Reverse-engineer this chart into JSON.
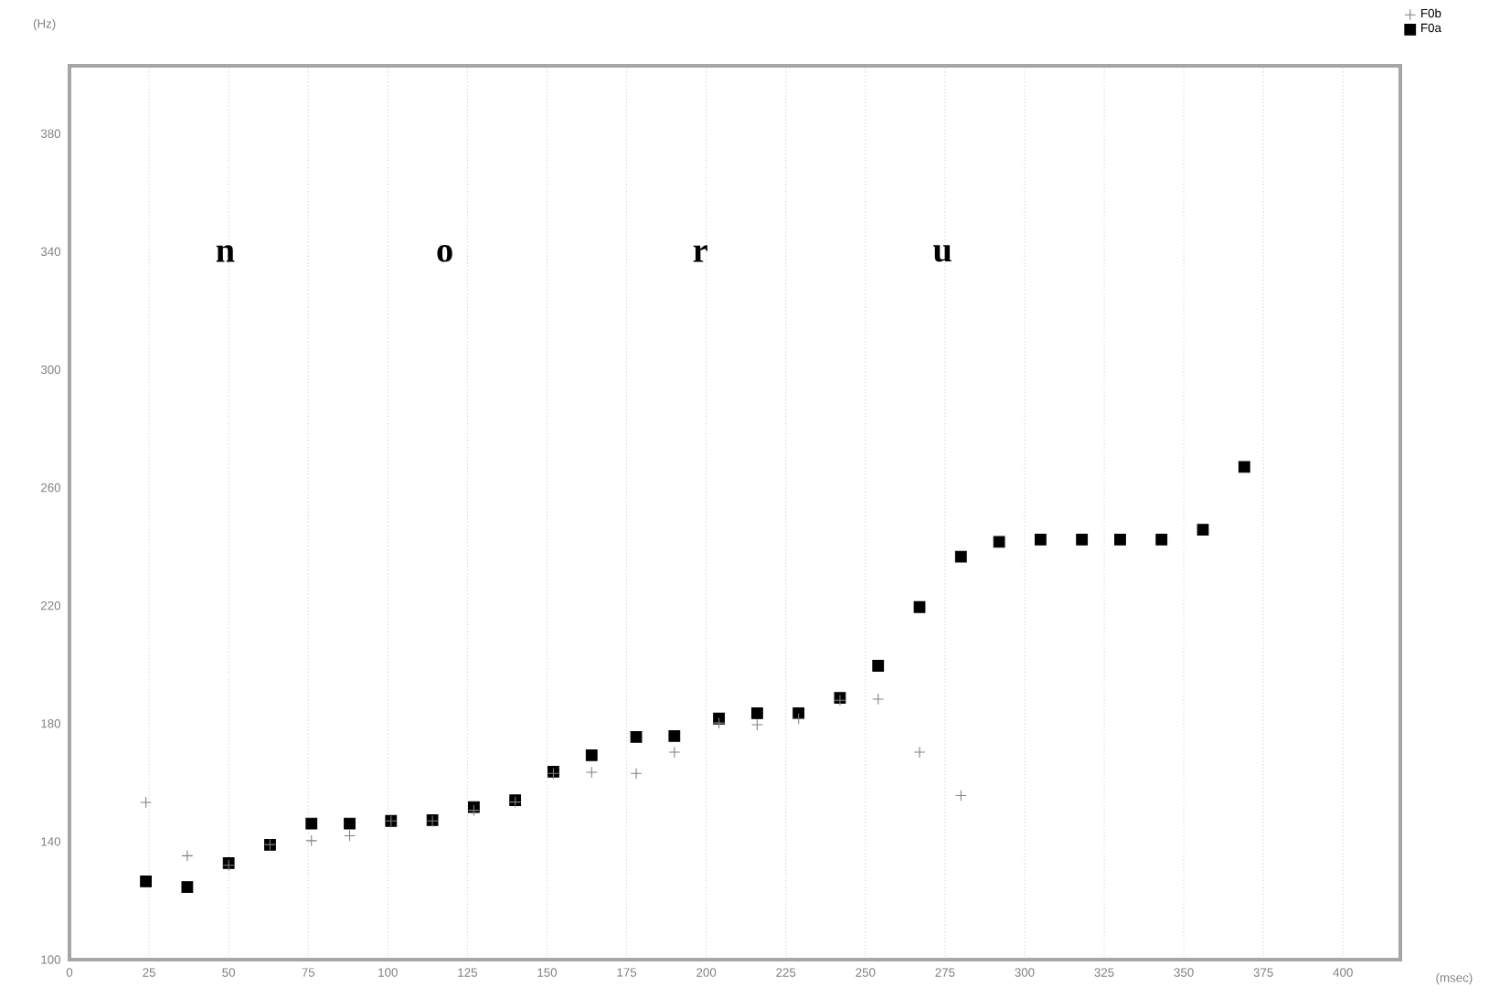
{
  "chart_data": {
    "type": "scatter",
    "xlabel": "(msec)",
    "ylabel": "(Hz)",
    "x": [
      24,
      37,
      50,
      63,
      76,
      88,
      101,
      114,
      127,
      140,
      152,
      164,
      178,
      190,
      204,
      216,
      229,
      242,
      254,
      267,
      280,
      292,
      305,
      318,
      330,
      343,
      356,
      369
    ],
    "series": [
      {
        "name": "F0b",
        "color": "#808080",
        "marker": "cross",
        "values": [
          153.3,
          135.2,
          132,
          139,
          140.3,
          142,
          147,
          147,
          150.6,
          153.4,
          163.1,
          163.5,
          163.1,
          170.3,
          180.2,
          179.6,
          181.7,
          187.9,
          188.3,
          170.3,
          155.6,
          null,
          null,
          null,
          null,
          null,
          null,
          null
        ]
      },
      {
        "name": "F0a",
        "color": "#000000",
        "marker": "square",
        "values": [
          126.5,
          124.6,
          132.7,
          138.9,
          146.1,
          146.1,
          147,
          147.3,
          151.7,
          154,
          163.7,
          169.3,
          175.5,
          175.8,
          181.7,
          183.5,
          183.5,
          188.7,
          199.6,
          219.5,
          236.6,
          241.6,
          242.4,
          242.4,
          242.4,
          242.4,
          245.7,
          267
        ]
      }
    ],
    "annotations": [
      "n",
      "o",
      "r",
      "u"
    ],
    "xlim": [
      0,
      418
    ],
    "ylim": [
      100,
      403
    ],
    "xticks": [
      0,
      25,
      50,
      75,
      100,
      125,
      150,
      175,
      200,
      225,
      250,
      275,
      300,
      325,
      350,
      375,
      400
    ],
    "yticks": [
      100,
      140,
      180,
      220,
      260,
      300,
      340,
      380
    ],
    "grid": "x",
    "legend": "top right"
  }
}
